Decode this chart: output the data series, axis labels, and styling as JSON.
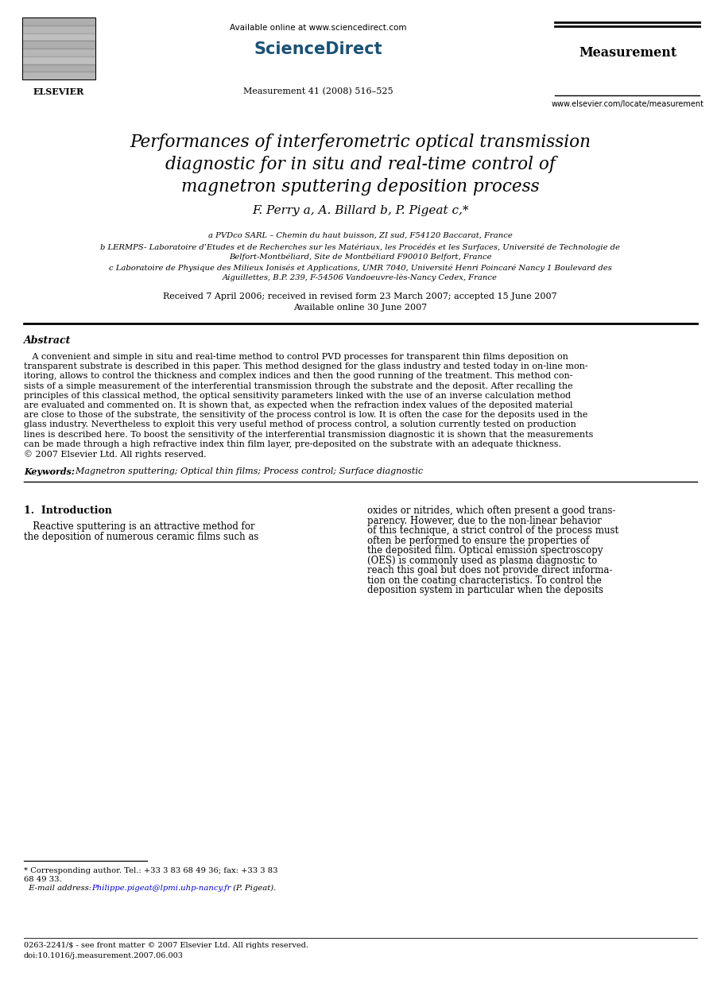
{
  "bg_color": "#ffffff",
  "elsevier_label": "ELSEVIER",
  "available_online": "Available online at www.sciencedirect.com",
  "sciencedirect_label": "ScienceDirect",
  "journal_right": "Measurement",
  "journal_info": "Measurement 41 (2008) 516–525",
  "url_right": "www.elsevier.com/locate/measurement",
  "title_lines": [
    "Performances of interferometric optical transmission",
    "diagnostic for in situ and real-time control of",
    "magnetron sputtering deposition process"
  ],
  "authors": "F. Perry a, A. Billard b, P. Pigeat c,*",
  "affil_a": "a PVDco SARL – Chemin du haut buisson, ZI sud, F54120 Baccarat, France",
  "affil_b_1": "b LERMPS- Laboratoire d’Etudes et de Recherches sur les Matériaux, les Procédés et les Surfaces, Université de Technologie de",
  "affil_b_2": "Belfort-Montbéliard, Site de Montbéliard F90010 Belfort, France",
  "affil_c_1": "c Laboratoire de Physique des Milieux Ionisés et Applications, UMR 7040, Université Henri Poincaré Nancy 1 Boulevard des",
  "affil_c_2": "Aiguillettes, B.P. 239, F-54506 Vandoeuvre-lès-Nancy Cedex, France",
  "received_line": "Received 7 April 2006; received in revised form 23 March 2007; accepted 15 June 2007",
  "available_line": "Available online 30 June 2007",
  "abstract_heading": "Abstract",
  "abstract_lines": [
    "   A convenient and simple in situ and real-time method to control PVD processes for transparent thin films deposition on",
    "transparent substrate is described in this paper. This method designed for the glass industry and tested today in on-line mon-",
    "itoring, allows to control the thickness and complex indices and then the good running of the treatment. This method con-",
    "sists of a simple measurement of the interferential transmission through the substrate and the deposit. After recalling the",
    "principles of this classical method, the optical sensitivity parameters linked with the use of an inverse calculation method",
    "are evaluated and commented on. It is shown that, as expected when the refraction index values of the deposited material",
    "are close to those of the substrate, the sensitivity of the process control is low. It is often the case for the deposits used in the",
    "glass industry. Nevertheless to exploit this very useful method of process control, a solution currently tested on production",
    "lines is described here. To boost the sensitivity of the interferential transmission diagnostic it is shown that the measurements",
    "can be made through a high refractive index thin film layer, pre-deposited on the substrate with an adequate thickness.",
    "© 2007 Elsevier Ltd. All rights reserved."
  ],
  "keywords_label": "Keywords:",
  "keywords_text": "  Magnetron sputtering; Optical thin films; Process control; Surface diagnostic",
  "sec1_title": "1.  Introduction",
  "sec1_left_lines": [
    "   Reactive sputtering is an attractive method for",
    "the deposition of numerous ceramic films such as"
  ],
  "sec1_right_lines": [
    "oxides or nitrides, which often present a good trans-",
    "parency. However, due to the non-linear behavior",
    "of this technique, a strict control of the process must",
    "often be performed to ensure the properties of",
    "the deposited film. Optical emission spectroscopy",
    "(OES) is commonly used as plasma diagnostic to",
    "reach this goal but does not provide direct informa-",
    "tion on the coating characteristics. To control the",
    "deposition system in particular when the deposits"
  ],
  "footnote1": "* Corresponding author. Tel.: +33 3 83 68 49 36; fax: +33 3 83",
  "footnote2": "68 49 33.",
  "footnote3": "E-mail address: Philippe.pigeat@lpmi.uhp-nancy.fr (P. Pigeat).",
  "footnote3_link": "Philippe.pigeat@lpmi.uhp-nancy.fr",
  "bottom1": "0263-2241/$ - see front matter © 2007 Elsevier Ltd. All rights reserved.",
  "bottom2": "doi:10.1016/j.measurement.2007.06.003"
}
